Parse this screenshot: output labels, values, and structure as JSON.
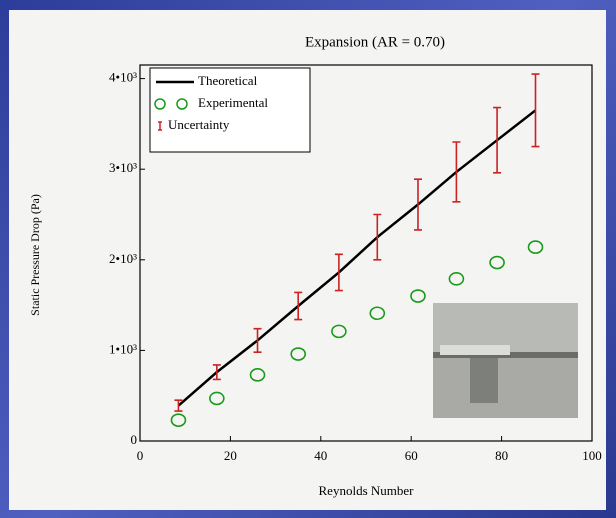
{
  "chart_data": {
    "type": "line",
    "title": "Expansion (AR = 0.70)",
    "x_label": "Reynolds Number",
    "y_label": "Static Pressure Drop (Pa)",
    "x": [
      8.5,
      17,
      26,
      35,
      44,
      52.5,
      61.5,
      70,
      79,
      87.5
    ],
    "series": [
      {
        "name": "Theoretical",
        "type": "line",
        "color": "#000000",
        "values": [
          390,
          760,
          1110,
          1490,
          1860,
          2250,
          2610,
          2970,
          3320,
          3650
        ]
      },
      {
        "name": "Experimental",
        "type": "scatter",
        "color": "#1a9a1a",
        "values": [
          230,
          470,
          730,
          960,
          1210,
          1410,
          1600,
          1790,
          1970,
          2140
        ]
      },
      {
        "name": "Uncertainty",
        "type": "errorbar",
        "color": "#cc2222",
        "errors": [
          60,
          80,
          130,
          150,
          200,
          250,
          280,
          330,
          360,
          400
        ]
      }
    ],
    "xlim": [
      0,
      100
    ],
    "xticks": [
      0,
      20,
      40,
      60,
      80,
      100
    ],
    "ylim": [
      0,
      4150
    ],
    "yticks": [
      0,
      {
        "value": 1000,
        "label": "1•10³"
      },
      {
        "value": 2000,
        "label": "2•10³"
      },
      {
        "value": 3000,
        "label": "3•10³"
      },
      {
        "value": 4000,
        "label": "4•10³"
      }
    ],
    "legend": "upper left"
  }
}
